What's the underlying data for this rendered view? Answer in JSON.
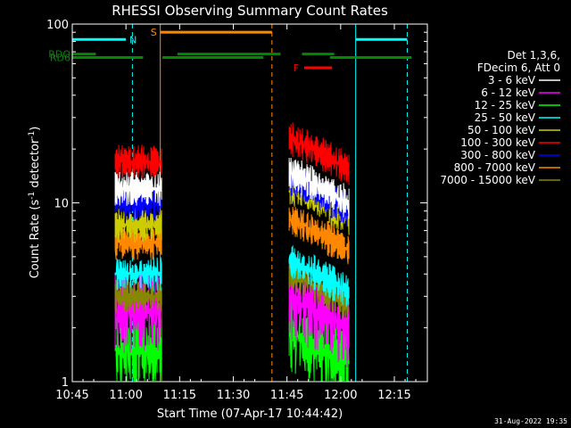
{
  "chart_data": {
    "type": "line",
    "title": "RHESSI Observing Summary Count Rates",
    "xlabel": "Start Time (07-Apr-17 10:44:42)",
    "ylabel_main": "Count Rate (s",
    "ylabel_sup1": "-1",
    "ylabel_mid": " detector",
    "ylabel_sup2": "-1",
    "ylabel_end": ")",
    "y_scale": "log",
    "ylim": [
      1,
      100
    ],
    "xlim_minutes": [
      10.0,
      13.0
    ],
    "x_ticks": [
      {
        "min": 10.75,
        "label": "10:45"
      },
      {
        "min": 11.0,
        "label": "11:00"
      },
      {
        "min": 11.25,
        "label": "11:15"
      },
      {
        "min": 11.5,
        "label": "11:30"
      },
      {
        "min": 11.75,
        "label": "11:45"
      },
      {
        "min": 12.0,
        "label": "12:00"
      },
      {
        "min": 12.25,
        "label": "12:15"
      }
    ],
    "y_ticks": [
      {
        "value": 1,
        "label": "1"
      },
      {
        "value": 10,
        "label": "10"
      },
      {
        "value": 100,
        "label": "100"
      }
    ],
    "legend_header": [
      "Det 1,3,6,",
      "FDecim 6, Att 0"
    ],
    "legend_placement": "right",
    "series": [
      {
        "name": "3 - 6 keV",
        "color": "#000000",
        "level1": 12,
        "level2": 11
      },
      {
        "name": "6 - 12 keV",
        "color": "#ff00ff",
        "level1": 2.5,
        "level2": 2.2
      },
      {
        "name": "12 - 25 keV",
        "color": "#00ff00",
        "level1": 1.5,
        "level2": 1.4
      },
      {
        "name": "25 - 50 keV",
        "color": "#00ffff",
        "level1": 4.0,
        "level2": 3.5
      },
      {
        "name": "50 - 100 keV",
        "color": "#cccc00",
        "level1": 7.5,
        "level2": 9.0
      },
      {
        "name": "100 - 300 keV",
        "color": "#ff0000",
        "level1": 17,
        "level2": 17
      },
      {
        "name": "300 - 800 keV",
        "color": "#0000ff",
        "level1": 10,
        "level2": 10
      },
      {
        "name": "800 - 7000 keV",
        "color": "#ff8800",
        "level1": 6,
        "level2": 6
      },
      {
        "name": "7000 - 15000 keV",
        "color": "#888800",
        "level1": 3,
        "level2": 3
      }
    ],
    "flags": [
      {
        "label": "N",
        "color": "#00ffff",
        "y": 82,
        "segments": [
          [
            10.75,
            11.0
          ],
          [
            12.07,
            12.31
          ]
        ]
      },
      {
        "label": "S",
        "color": "#ff8800",
        "y": 90,
        "segments": [
          [
            11.16,
            11.68
          ]
        ]
      },
      {
        "label": "F",
        "color": "#ff0000",
        "y": 57,
        "segments": [
          [
            11.83,
            11.96
          ]
        ]
      },
      {
        "label": "RDO",
        "color": "#008800",
        "y": 68,
        "segments": [
          [
            10.75,
            10.86
          ],
          [
            11.24,
            11.72
          ],
          [
            11.82,
            11.97
          ]
        ]
      },
      {
        "label": "RD6",
        "color": "#008800",
        "y": 65,
        "segments": [
          [
            10.75,
            11.08
          ],
          [
            11.17,
            11.64
          ],
          [
            11.95,
            12.33
          ]
        ]
      }
    ],
    "vlines": [
      {
        "x": 10.75,
        "color": "#00ffff",
        "style": "solid"
      },
      {
        "x": 11.03,
        "color": "#00ffff",
        "style": "dashed"
      },
      {
        "x": 11.16,
        "color": "#ff8800",
        "style": "solid"
      },
      {
        "x": 11.68,
        "color": "#ff8800",
        "style": "dashed"
      },
      {
        "x": 12.07,
        "color": "#00ffff",
        "style": "solid"
      },
      {
        "x": 12.31,
        "color": "#00ffff",
        "style": "dashed"
      }
    ],
    "data_intervals": [
      [
        10.95,
        11.17
      ],
      [
        11.76,
        12.04
      ]
    ]
  },
  "footer": {
    "timestamp": "31-Aug-2022 19:35"
  }
}
